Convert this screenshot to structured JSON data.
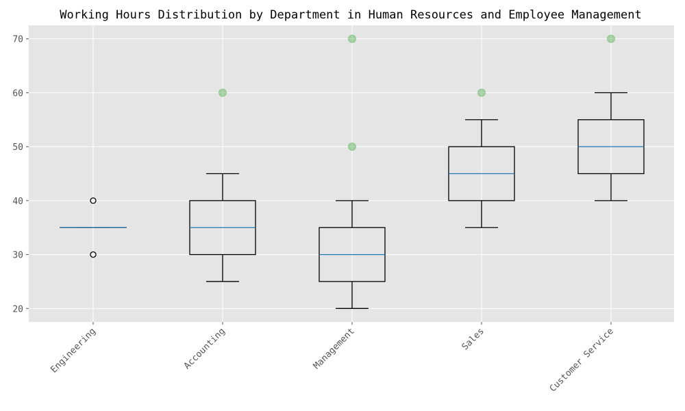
{
  "chart_data": {
    "type": "box",
    "title": "Working Hours Distribution by Department in Human Resources and Employee Management",
    "xlabel": "",
    "ylabel": "",
    "ylim": [
      17.5,
      72.5
    ],
    "yticks": [
      20,
      30,
      40,
      50,
      60,
      70
    ],
    "grid": true,
    "categories": [
      "Engineering",
      "Accounting",
      "Management",
      "Sales",
      "Customer Service"
    ],
    "boxes": [
      {
        "whisker_low": 35,
        "q1": 35,
        "median": 35,
        "q3": 35,
        "whisker_high": 35
      },
      {
        "whisker_low": 25,
        "q1": 30,
        "median": 35,
        "q3": 40,
        "whisker_high": 45
      },
      {
        "whisker_low": 20,
        "q1": 25,
        "median": 30,
        "q3": 35,
        "whisker_high": 40
      },
      {
        "whisker_low": 35,
        "q1": 40,
        "median": 45,
        "q3": 50,
        "whisker_high": 55
      },
      {
        "whisker_low": 40,
        "q1": 45,
        "median": 50,
        "q3": 55,
        "whisker_high": 60
      }
    ],
    "flier_points": [
      {
        "category": "Engineering",
        "value": 30
      },
      {
        "category": "Engineering",
        "value": 40
      }
    ],
    "outlier_points": [
      {
        "category": "Accounting",
        "value": 60
      },
      {
        "category": "Management",
        "value": 50
      },
      {
        "category": "Management",
        "value": 70
      },
      {
        "category": "Sales",
        "value": 60
      },
      {
        "category": "Customer Service",
        "value": 70
      }
    ],
    "colors": {
      "plot_background": "#e5e5e5",
      "grid": "#ffffff",
      "box_edge": "#000000",
      "median": "#1f77b4",
      "flier_edge": "#000000",
      "outlier": "#2ca02c"
    }
  }
}
